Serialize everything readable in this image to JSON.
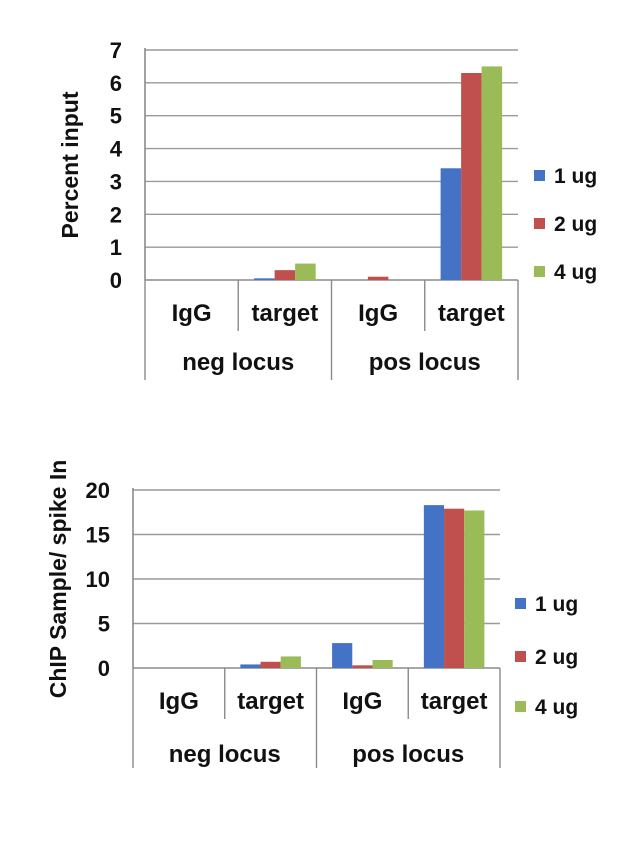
{
  "chart_data": [
    {
      "type": "bar",
      "ylabel": "Percent input",
      "ylim": [
        0,
        7
      ],
      "yticks": [
        "0",
        "1",
        "2",
        "3",
        "4",
        "5",
        "6",
        "7"
      ],
      "groups": [
        "neg locus",
        "pos locus"
      ],
      "categories": [
        "IgG",
        "target",
        "IgG",
        "target"
      ],
      "series": [
        {
          "name": "1 ug",
          "color": "#4472C4",
          "values": [
            0.0,
            0.05,
            0.0,
            3.4
          ]
        },
        {
          "name": "2 ug",
          "color": "#C0504D",
          "values": [
            0.0,
            0.3,
            0.1,
            6.3
          ]
        },
        {
          "name": "4 ug",
          "color": "#9BBB59",
          "values": [
            0.0,
            0.5,
            0.0,
            6.5
          ]
        }
      ],
      "legend_position": "right",
      "grid": true
    },
    {
      "type": "bar",
      "ylabel": "ChIP Sample/ spike In",
      "ylim": [
        0,
        20
      ],
      "yticks": [
        "0",
        "5",
        "10",
        "15",
        "20"
      ],
      "groups": [
        "neg locus",
        "pos locus"
      ],
      "categories": [
        "IgG",
        "target",
        "IgG",
        "target"
      ],
      "series": [
        {
          "name": "1 ug",
          "color": "#4472C4",
          "values": [
            0.0,
            0.4,
            2.8,
            18.3
          ]
        },
        {
          "name": "2 ug",
          "color": "#C0504D",
          "values": [
            0.0,
            0.7,
            0.3,
            17.9
          ]
        },
        {
          "name": "4 ug",
          "color": "#9BBB59",
          "values": [
            0.0,
            1.3,
            0.9,
            17.7
          ]
        }
      ],
      "legend_position": "right",
      "grid": true
    }
  ]
}
